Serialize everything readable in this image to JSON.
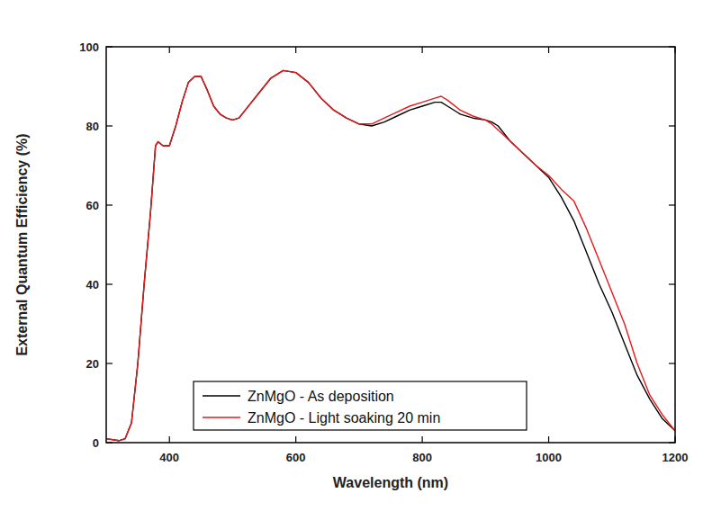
{
  "chart_data": {
    "type": "line",
    "x_label": "Wavelength (nm)",
    "y_label": "External Quantum Efficiency (%)",
    "x": [
      300,
      320,
      330,
      340,
      350,
      360,
      370,
      378,
      382,
      390,
      400,
      410,
      420,
      430,
      440,
      450,
      460,
      470,
      480,
      490,
      500,
      510,
      520,
      540,
      560,
      580,
      600,
      620,
      640,
      660,
      680,
      700,
      720,
      740,
      760,
      780,
      800,
      820,
      830,
      840,
      860,
      880,
      900,
      910,
      920,
      940,
      960,
      980,
      1000,
      1020,
      1040,
      1060,
      1080,
      1100,
      1120,
      1140,
      1160,
      1180,
      1200
    ],
    "series": [
      {
        "name": "ZnMgO - As deposition",
        "color": "#000000",
        "values": [
          1,
          0.5,
          1,
          5,
          20,
          40,
          58,
          75,
          76,
          75,
          75,
          80,
          86,
          91,
          92.5,
          92.5,
          89,
          85,
          83,
          82,
          81.5,
          82,
          84,
          88,
          92,
          94,
          93.5,
          91,
          87,
          84,
          82,
          80.5,
          80,
          81,
          82.5,
          84,
          85,
          86,
          86,
          85,
          83,
          82,
          81.5,
          81,
          80,
          76,
          73,
          70,
          67,
          62,
          56,
          48,
          40,
          33,
          25,
          17,
          11,
          6,
          3
        ]
      },
      {
        "name": "ZnMgO - Light soaking 20 min",
        "color": "#e8191b",
        "values": [
          1,
          0.5,
          1,
          5,
          20,
          40,
          58,
          75,
          76,
          75,
          75,
          80,
          86,
          91,
          92.5,
          92.5,
          89,
          85,
          83,
          82,
          81.5,
          82,
          84,
          88,
          92,
          94,
          93.5,
          91,
          87,
          84,
          82,
          80.5,
          80.5,
          82,
          83.5,
          85,
          86,
          87,
          87.5,
          86.5,
          84,
          82.5,
          81.5,
          80.5,
          79,
          76,
          73,
          70,
          67.5,
          64,
          61,
          54,
          46,
          38,
          30,
          20,
          12,
          7,
          3
        ]
      }
    ],
    "xlim": [
      300,
      1200
    ],
    "xticks": [
      400,
      600,
      800,
      1000,
      1200
    ],
    "ylim": [
      0,
      100
    ],
    "yticks": [
      0,
      20,
      40,
      60,
      80,
      100
    ],
    "legend": "lower left",
    "grid": false
  }
}
